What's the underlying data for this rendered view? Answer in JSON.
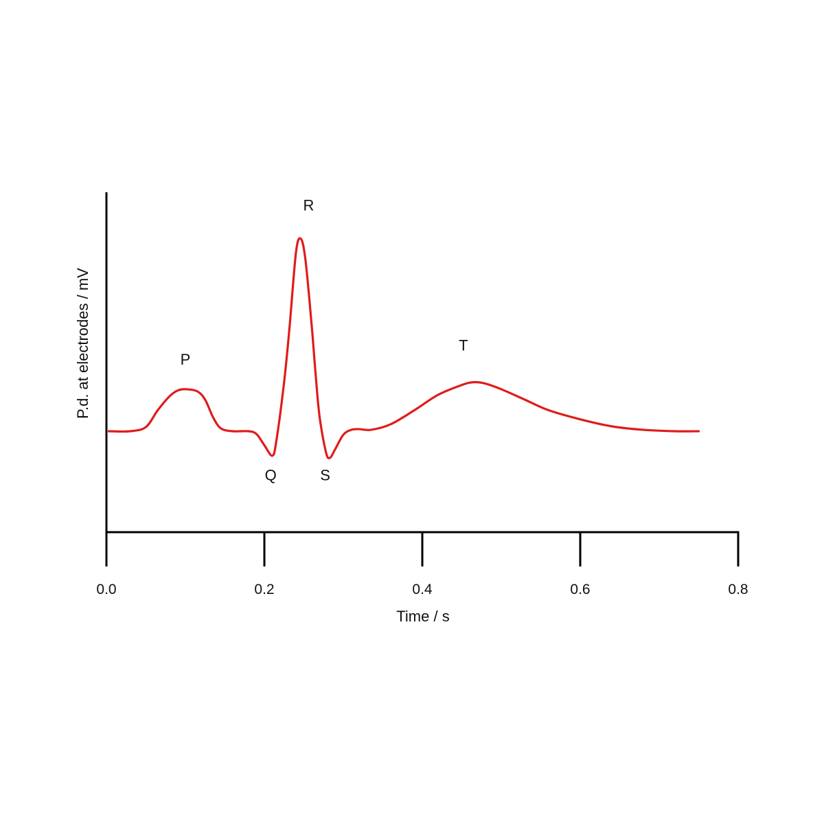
{
  "chart_data": {
    "type": "line",
    "title": "",
    "xlabel": "Time / s",
    "ylabel": "P.d. at electrodes / mV",
    "xlim": [
      0.0,
      0.8
    ],
    "ylim": [
      -1,
      4
    ],
    "y_ticks_shown": false,
    "grid": false,
    "legend": "none",
    "x_ticks": [
      0.0,
      0.2,
      0.4,
      0.6,
      0.8
    ],
    "x_tick_labels": [
      "0.0",
      "0.2",
      "0.4",
      "0.6",
      "0.8"
    ],
    "line_color": "#e01b1b",
    "axis_color": "#000000",
    "series": [
      {
        "values": [
          [
            0.003,
            0.0
          ],
          [
            0.03,
            0.0
          ],
          [
            0.05,
            0.06
          ],
          [
            0.065,
            0.3
          ],
          [
            0.08,
            0.5
          ],
          [
            0.09,
            0.58
          ],
          [
            0.1,
            0.6
          ],
          [
            0.115,
            0.57
          ],
          [
            0.125,
            0.45
          ],
          [
            0.135,
            0.2
          ],
          [
            0.145,
            0.04
          ],
          [
            0.16,
            0.0
          ],
          [
            0.18,
            0.0
          ],
          [
            0.19,
            -0.04
          ],
          [
            0.2,
            -0.2
          ],
          [
            0.21,
            -0.35
          ],
          [
            0.215,
            -0.15
          ],
          [
            0.225,
            0.7
          ],
          [
            0.232,
            1.5
          ],
          [
            0.24,
            2.55
          ],
          [
            0.246,
            2.75
          ],
          [
            0.252,
            2.45
          ],
          [
            0.26,
            1.5
          ],
          [
            0.265,
            0.8
          ],
          [
            0.27,
            0.2
          ],
          [
            0.278,
            -0.3
          ],
          [
            0.283,
            -0.38
          ],
          [
            0.29,
            -0.25
          ],
          [
            0.3,
            -0.05
          ],
          [
            0.31,
            0.02
          ],
          [
            0.32,
            0.03
          ],
          [
            0.335,
            0.02
          ],
          [
            0.36,
            0.1
          ],
          [
            0.39,
            0.3
          ],
          [
            0.42,
            0.52
          ],
          [
            0.45,
            0.66
          ],
          [
            0.465,
            0.7
          ],
          [
            0.48,
            0.68
          ],
          [
            0.5,
            0.6
          ],
          [
            0.53,
            0.45
          ],
          [
            0.56,
            0.3
          ],
          [
            0.6,
            0.17
          ],
          [
            0.64,
            0.07
          ],
          [
            0.68,
            0.02
          ],
          [
            0.72,
            0.0
          ],
          [
            0.75,
            0.0
          ]
        ]
      }
    ],
    "annotations": [
      {
        "text": "P",
        "x": 0.1,
        "y": 0.95
      },
      {
        "text": "Q",
        "x": 0.208,
        "y": -0.7
      },
      {
        "text": "R",
        "x": 0.256,
        "y": 3.15
      },
      {
        "text": "S",
        "x": 0.277,
        "y": -0.7
      },
      {
        "text": "T",
        "x": 0.452,
        "y": 1.15
      }
    ]
  }
}
